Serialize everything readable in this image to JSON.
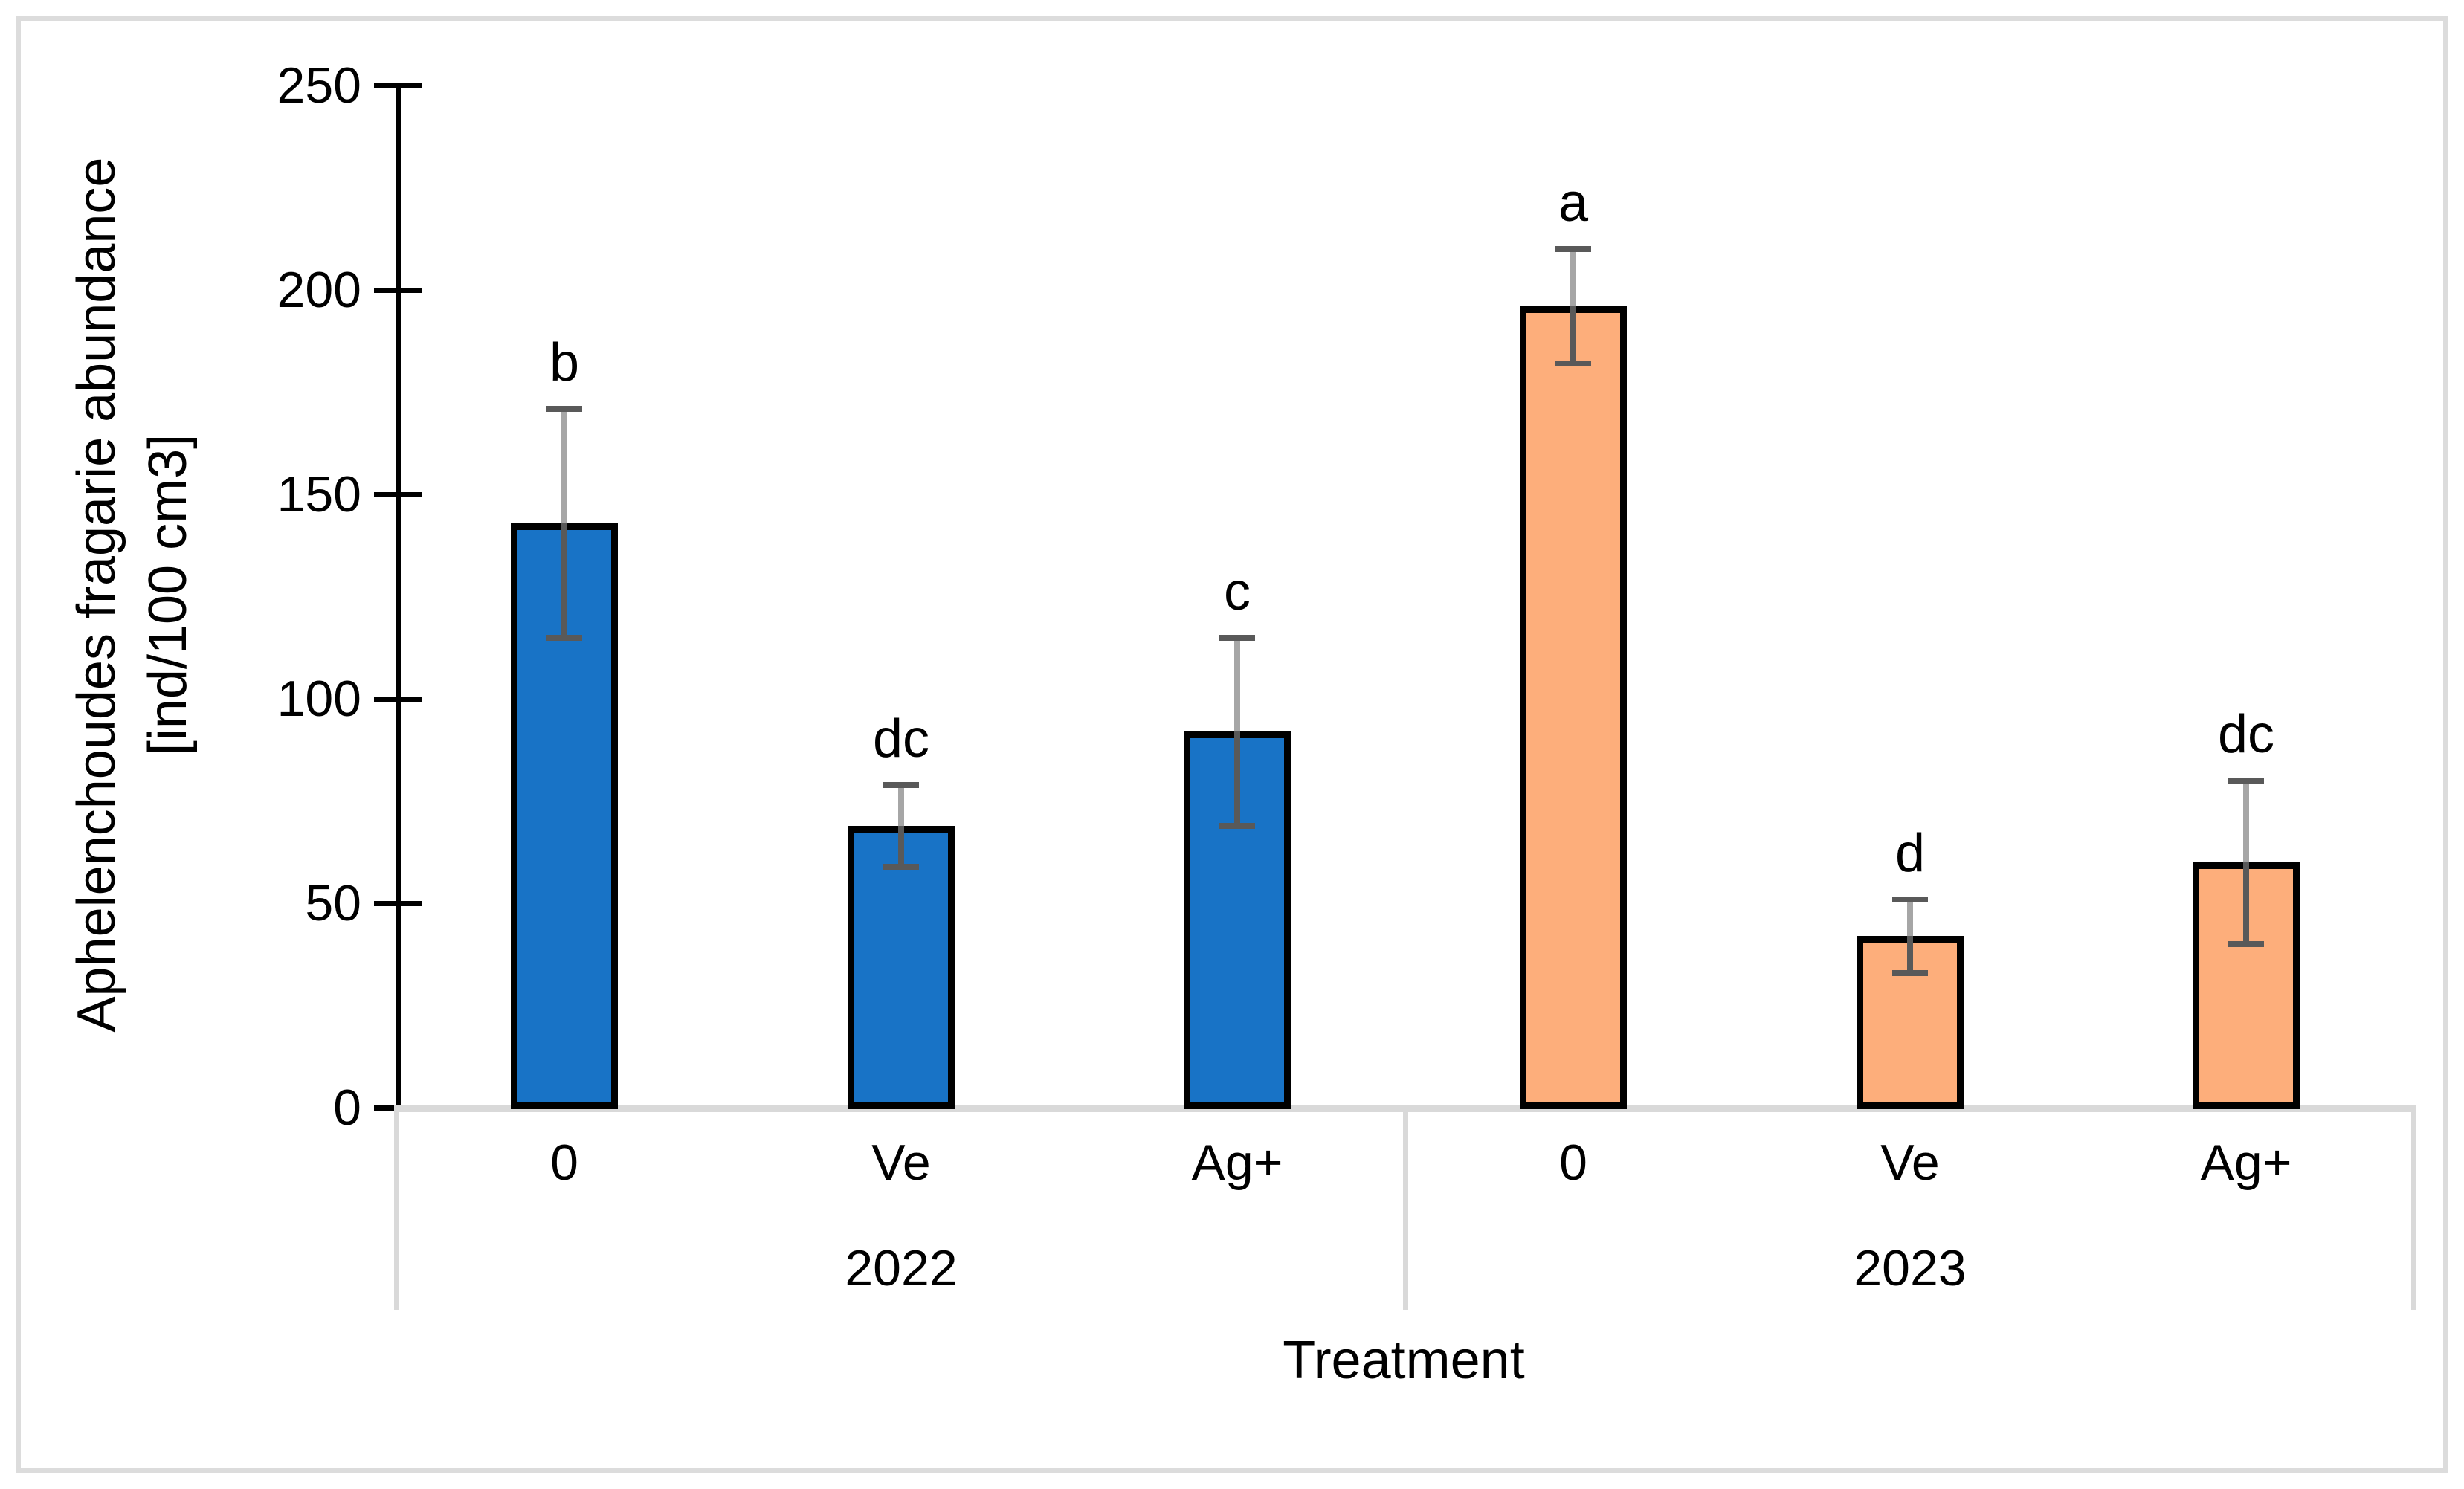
{
  "figure": {
    "background": "#FFFFFF",
    "border_color": "#DCDCDC"
  },
  "chart_data": {
    "type": "bar",
    "title": "",
    "ylabel_line1": "Aphelenchoudes fragarie abundance",
    "ylabel_line2": "[ind/100 cm3]",
    "xlabel": "Treatment",
    "ylim": [
      0,
      250
    ],
    "yticks": [
      0,
      50,
      100,
      150,
      200,
      250
    ],
    "grid": "off",
    "legend": "none",
    "categories_note": "two-level category axis: treatment within year",
    "groups": [
      {
        "year": "2022",
        "bar_color": "#1873C6",
        "bars": [
          {
            "category": "0",
            "value": 143,
            "error_low": 115,
            "error_high": 171,
            "letter": "b"
          },
          {
            "category": "Ve",
            "value": 69,
            "error_low": 59,
            "error_high": 79,
            "letter": "dc"
          },
          {
            "category": "Ag+",
            "value": 92,
            "error_low": 69,
            "error_high": 115,
            "letter": "c"
          }
        ]
      },
      {
        "year": "2023",
        "bar_color": "#FDAE7B",
        "bars": [
          {
            "category": "0",
            "value": 196,
            "error_low": 182,
            "error_high": 210,
            "letter": "a"
          },
          {
            "category": "Ve",
            "value": 42,
            "error_low": 33,
            "error_high": 51,
            "letter": "d"
          },
          {
            "category": "Ag+",
            "value": 60,
            "error_low": 40,
            "error_high": 80,
            "letter": "dc"
          }
        ]
      }
    ],
    "colors": {
      "bar_outline": "#000000",
      "axis": "#000000",
      "category_axis_line": "#D9D9D9",
      "error_bar_upper": "#A6A6A6",
      "error_bar_lower": "#595959",
      "error_bar_cap": "#595959",
      "text": "#000000"
    }
  }
}
